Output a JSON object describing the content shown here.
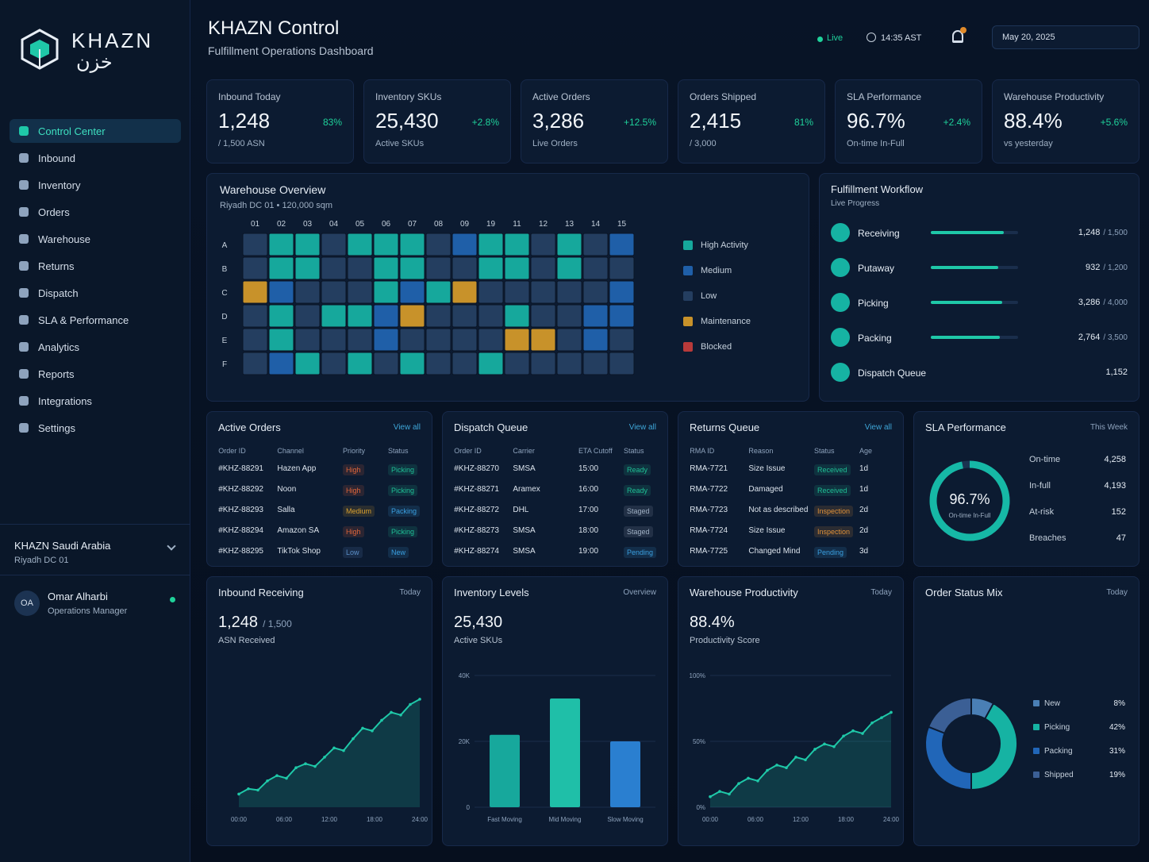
{
  "brand": {
    "logo": "KHAZN",
    "logo_arabic": "خزن"
  },
  "header": {
    "title": "KHAZN Control",
    "subtitle": "Fulfillment Operations Dashboard",
    "status": "Live",
    "time": "14:35 AST",
    "date": "May 20, 2025"
  },
  "nav": [
    "Control Center",
    "Inbound",
    "Inventory",
    "Orders",
    "Warehouse",
    "Returns",
    "Dispatch",
    "SLA & Performance",
    "Analytics",
    "Reports",
    "Integrations",
    "Settings"
  ],
  "org": {
    "name": "KHAZN Saudi Arabia",
    "site": "Riyadh DC 01"
  },
  "user": {
    "initials": "OA",
    "name": "Omar Alharbi",
    "role": "Operations Manager"
  },
  "kpis": [
    {
      "label": "Inbound Today",
      "value": "1,248",
      "sub": "/ 1,500 ASN",
      "change": "83%"
    },
    {
      "label": "Inventory SKUs",
      "value": "25,430",
      "sub": "Active SKUs",
      "change": "+2.8%"
    },
    {
      "label": "Active Orders",
      "value": "3,286",
      "sub": "Live Orders",
      "change": "+12.5%"
    },
    {
      "label": "Orders Shipped",
      "value": "2,415",
      "sub": "/ 3,000",
      "change": "81%"
    },
    {
      "label": "SLA Performance",
      "value": "96.7%",
      "sub": "On-time In-Full",
      "change": "+2.4%"
    },
    {
      "label": "Warehouse Productivity",
      "value": "88.4%",
      "sub": "vs yesterday",
      "change": "+5.6%"
    }
  ],
  "warehouse": {
    "title": "Warehouse Overview",
    "subtitle": "Riyadh DC 01 • 120,000 sqm",
    "columns": [
      "01",
      "02",
      "03",
      "04",
      "05",
      "06",
      "07",
      "08",
      "09",
      "19",
      "11",
      "12",
      "13",
      "14",
      "15"
    ],
    "rows": [
      "A",
      "B",
      "C",
      "D",
      "E",
      "F"
    ],
    "cells": [
      [
        2,
        0,
        0,
        2,
        0,
        0,
        0,
        2,
        1,
        0,
        0,
        2,
        0,
        2,
        1
      ],
      [
        2,
        0,
        0,
        2,
        2,
        0,
        0,
        2,
        2,
        0,
        0,
        2,
        0,
        2,
        2
      ],
      [
        3,
        1,
        2,
        2,
        2,
        0,
        1,
        0,
        3,
        2,
        2,
        2,
        2,
        2,
        1
      ],
      [
        2,
        0,
        2,
        0,
        0,
        1,
        3,
        2,
        2,
        2,
        0,
        2,
        2,
        1,
        1
      ],
      [
        2,
        0,
        2,
        2,
        2,
        1,
        2,
        2,
        2,
        2,
        3,
        3,
        2,
        1,
        2
      ],
      [
        2,
        1,
        0,
        2,
        0,
        2,
        0,
        2,
        2,
        0,
        2,
        2,
        2,
        2,
        2
      ]
    ],
    "legend": [
      {
        "name": "High Activity",
        "color": "#16a89c"
      },
      {
        "name": "Medium",
        "color": "#1f5fa8"
      },
      {
        "name": "Low",
        "color": "#243e60"
      },
      {
        "name": "Maintenance",
        "color": "#c8922a"
      },
      {
        "name": "Blocked",
        "color": "#b83a3a"
      }
    ]
  },
  "workflow": {
    "title": "Fulfillment Workflow",
    "subtitle": "Live Progress",
    "steps": [
      {
        "name": "Receiving",
        "value": {
          "value": 1248,
          "label": "1,248"
        },
        "total": {
          "value": 1500,
          "label": "/ 1,500"
        }
      },
      {
        "name": "Putaway",
        "value": {
          "value": 932,
          "label": "932"
        },
        "total": {
          "value": 1200,
          "label": "/ 1,200"
        }
      },
      {
        "name": "Picking",
        "value": {
          "value": 3286,
          "label": "3,286"
        },
        "total": {
          "value": 4000,
          "label": "/ 4,000"
        }
      },
      {
        "name": "Packing",
        "value": {
          "value": 2764,
          "label": "2,764"
        },
        "total": {
          "value": 3500,
          "label": "/ 3,500"
        }
      },
      {
        "name": "Dispatch Queue",
        "value": {
          "value": 1152,
          "label": "1,152"
        }
      }
    ]
  },
  "badge_colors": {
    "High": "#e0663a",
    "Medium": "#d9a02e",
    "Low": "#5b8fc8",
    "Picking": "#1fbf95",
    "Packing": "#3a9fe0",
    "New": "#3a9fe0",
    "Ready": "#1fbf95",
    "Staged": "#9fb0c4",
    "Pending": "#3a9fe0",
    "Received": "#1fbf95",
    "Inspection": "#e0923a"
  },
  "tables": [
    {
      "title": "Active Orders",
      "link": "View all",
      "columns": [
        "Order ID",
        "Channel",
        "Priority",
        "Status"
      ],
      "badge_columns": [
        2,
        3
      ],
      "rows": [
        [
          "#KHZ-88291",
          "Hazen App",
          "High",
          "Picking"
        ],
        [
          "#KHZ-88292",
          "Noon",
          "High",
          "Picking"
        ],
        [
          "#KHZ-88293",
          "Salla",
          "Medium",
          "Packing"
        ],
        [
          "#KHZ-88294",
          "Amazon SA",
          "High",
          "Picking"
        ],
        [
          "#KHZ-88295",
          "TikTok Shop",
          "Low",
          "New"
        ]
      ]
    },
    {
      "title": "Dispatch Queue",
      "link": "View all",
      "columns": [
        "Order ID",
        "Carrier",
        "ETA Cutoff",
        "Status"
      ],
      "badge_columns": [
        3
      ],
      "rows": [
        [
          "#KHZ-88270",
          "SMSA",
          "15:00",
          "Ready"
        ],
        [
          "#KHZ-88271",
          "Aramex",
          "16:00",
          "Ready"
        ],
        [
          "#KHZ-88272",
          "DHL",
          "17:00",
          "Staged"
        ],
        [
          "#KHZ-88273",
          "SMSA",
          "18:00",
          "Staged"
        ],
        [
          "#KHZ-88274",
          "SMSA",
          "19:00",
          "Pending"
        ]
      ]
    },
    {
      "title": "Returns Queue",
      "link": "View all",
      "columns": [
        "RMA ID",
        "Reason",
        "Status",
        "Age"
      ],
      "badge_columns": [
        2
      ],
      "rows": [
        [
          "RMA-7721",
          "Size Issue",
          "Received",
          "1d"
        ],
        [
          "RMA-7722",
          "Damaged",
          "Received",
          "1d"
        ],
        [
          "RMA-7723",
          "Not as described",
          "Inspection",
          "2d"
        ],
        [
          "RMA-7724",
          "Size Issue",
          "Inspection",
          "2d"
        ],
        [
          "RMA-7725",
          "Changed Mind",
          "Pending",
          "3d"
        ]
      ]
    }
  ],
  "sla": {
    "title": "SLA Performance",
    "period": "This Week",
    "gauge": {
      "value": 96.7,
      "label": "96.7%"
    },
    "range": [
      0,
      100
    ],
    "caption": "On-time In-Full",
    "color": "#16b8a6",
    "stats": [
      {
        "name": "On-time",
        "value": "4,258"
      },
      {
        "name": "In-full",
        "value": "4,193"
      },
      {
        "name": "At-risk",
        "value": "152"
      },
      {
        "name": "Breaches",
        "value": "47"
      }
    ]
  },
  "chart_data": [
    {
      "type": "line",
      "title": "Inbound Receiving",
      "period": "Today",
      "value": "1,248",
      "sub": "/ 1,500",
      "caption": "ASN Received",
      "xtick_labels": [
        "00:00",
        "06:00",
        "12:00",
        "18:00",
        "24:00"
      ],
      "values": [
        10,
        14,
        13,
        20,
        24,
        22,
        30,
        33,
        31,
        38,
        45,
        43,
        52,
        60,
        58,
        66,
        72,
        70,
        78,
        82
      ],
      "ylim": [
        0,
        100
      ],
      "color": "#1fc8a8"
    },
    {
      "type": "bar",
      "title": "Inventory Levels",
      "period": "Overview",
      "value": "25,430",
      "caption": "Active SKUs",
      "categories": [
        "Fast Moving",
        "Mid Moving",
        "Slow Moving"
      ],
      "values": [
        22000,
        33000,
        20000
      ],
      "colors": [
        "#17a89c",
        "#1fbfa8",
        "#2a7fd0"
      ],
      "ylim": [
        0,
        40000
      ],
      "yticks": [
        {
          "value": 40000,
          "label": "40K"
        },
        {
          "value": 20000,
          "label": "20K"
        },
        0
      ]
    },
    {
      "type": "line",
      "title": "Warehouse Productivity",
      "period": "Today",
      "value": "88.4%",
      "caption": "Productivity Score",
      "xtick_labels": [
        "00:00",
        "06:00",
        "12:00",
        "18:00",
        "24:00"
      ],
      "values": [
        8,
        12,
        10,
        18,
        22,
        20,
        28,
        32,
        30,
        38,
        36,
        44,
        48,
        46,
        54,
        58,
        56,
        64,
        68,
        72
      ],
      "ylim": [
        0,
        100
      ],
      "yticks": [
        {
          "value": 100,
          "label": "100%"
        },
        {
          "value": 50,
          "label": "50%"
        },
        {
          "value": 0,
          "label": "0%"
        }
      ],
      "color": "#1fc8a8"
    },
    {
      "type": "donut",
      "title": "Order Status Mix",
      "period": "Today",
      "categories": [
        "New",
        "Picking",
        "Packing",
        "Shipped"
      ],
      "values": [
        8,
        42,
        31,
        19
      ],
      "value_labels": [
        "8%",
        "42%",
        "31%",
        "19%"
      ],
      "colors": [
        "#4a7fb5",
        "#16b3a3",
        "#2166b8",
        "#3b5f95"
      ]
    }
  ]
}
